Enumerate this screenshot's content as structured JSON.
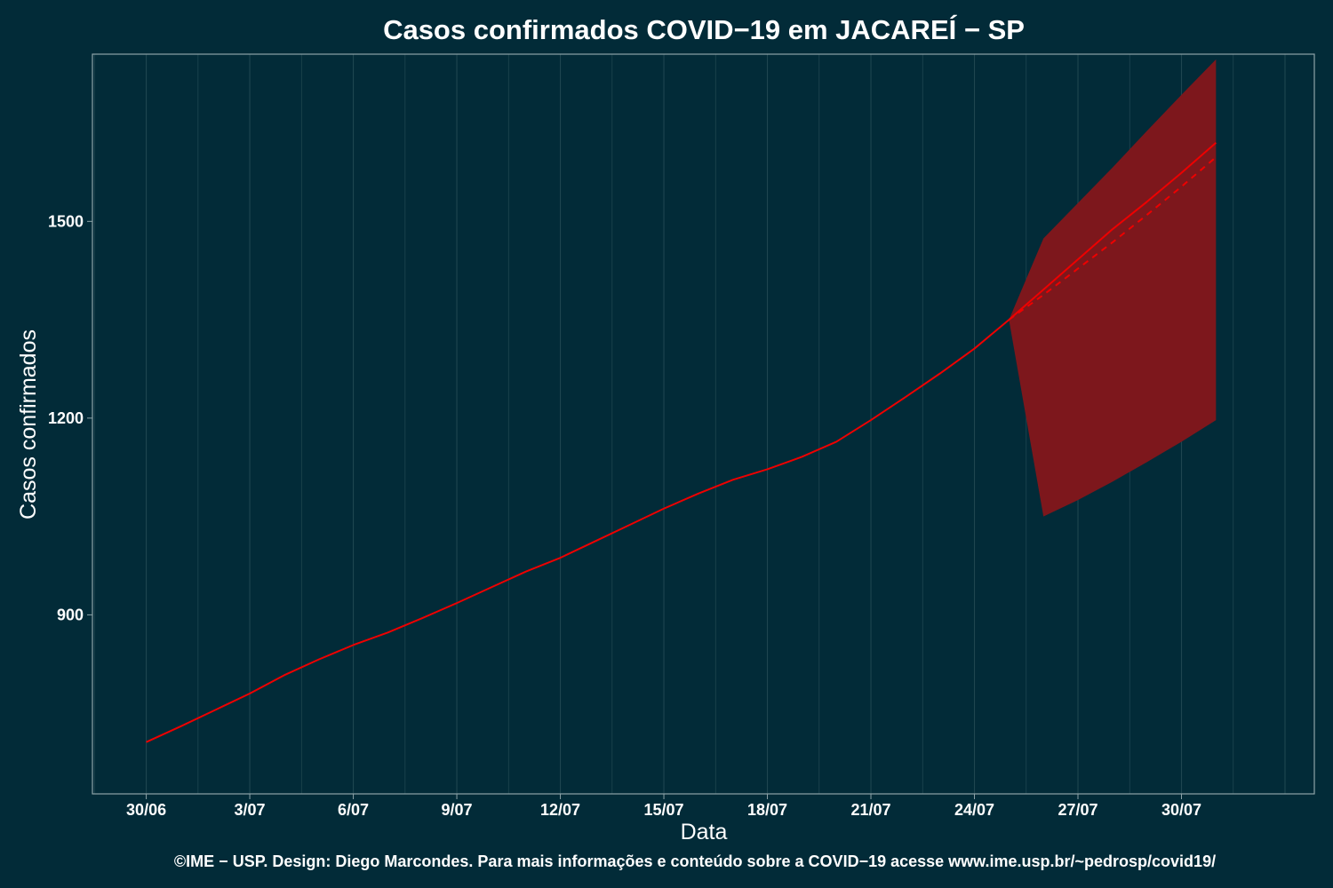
{
  "chart_data": {
    "type": "line",
    "title": "Casos confirmados COVID−19 em JACAREÍ − SP",
    "xlabel": "Data",
    "ylabel": "Casos confirmados",
    "caption": "©IME − USP. Design: Diego Marcondes. Para mais informações e conteúdo sobre a COVID−19 acesse www.ime.usp.br/~pedrosp/covid19/",
    "x_tick_labels": [
      "30/06",
      "3/07",
      "6/07",
      "9/07",
      "12/07",
      "15/07",
      "18/07",
      "21/07",
      "24/07",
      "27/07",
      "30/07"
    ],
    "y_ticks": [
      900,
      1200,
      1500
    ],
    "ylim": [
      627,
      1755
    ],
    "grid": "vertical lines only",
    "colors": {
      "background": "#022b38",
      "line": "#ee0000",
      "band": "#7d171c",
      "grid": "#1f4650",
      "axis": "#8ea3a8"
    },
    "series": [
      {
        "style": "solid",
        "x": [
          "30/06",
          "1/07",
          "2/07",
          "3/07",
          "4/07",
          "5/07",
          "6/07",
          "7/07",
          "8/07",
          "9/07",
          "10/07",
          "11/07",
          "12/07",
          "13/07",
          "14/07",
          "15/07",
          "16/07",
          "17/07",
          "18/07",
          "19/07",
          "20/07",
          "21/07",
          "22/07",
          "23/07",
          "24/07",
          "25/07"
        ],
        "values": [
          706,
          730,
          755,
          780,
          808,
          832,
          854,
          873,
          895,
          918,
          942,
          966,
          987,
          1012,
          1037,
          1062,
          1085,
          1106,
          1122,
          1141,
          1164,
          1197,
          1232,
          1268,
          1306,
          1350
        ]
      },
      {
        "style": "solid",
        "x": [
          "25/07",
          "26/07",
          "27/07",
          "28/07",
          "29/07",
          "30/07",
          "31/07"
        ],
        "values": [
          1350,
          1396,
          1442,
          1488,
          1530,
          1574,
          1620
        ]
      },
      {
        "style": "dashed",
        "x": [
          "25/07",
          "26/07",
          "27/07",
          "28/07",
          "29/07",
          "30/07",
          "31/07"
        ],
        "values": [
          1350,
          1388,
          1428,
          1468,
          1510,
          1553,
          1598
        ]
      }
    ],
    "interval": {
      "x": [
        "25/07",
        "26/07",
        "27/07",
        "28/07",
        "29/07",
        "30/07",
        "31/07"
      ],
      "lower": [
        1350,
        1050,
        1075,
        1103,
        1133,
        1164,
        1197
      ],
      "upper": [
        1350,
        1474,
        1528,
        1582,
        1638,
        1693,
        1747
      ]
    }
  }
}
